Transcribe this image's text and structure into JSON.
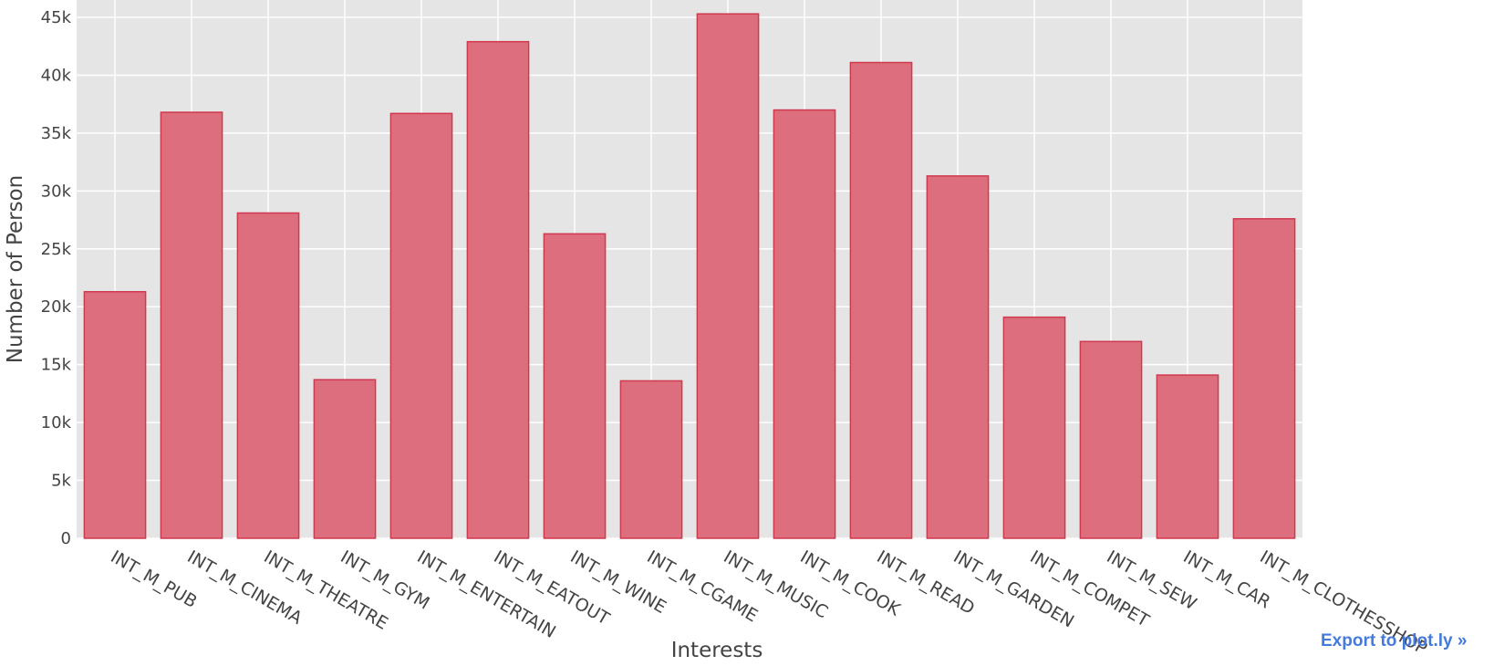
{
  "export_label": "Export to plot.ly »",
  "colors": {
    "bar_fill": "#dc6e7e",
    "bar_stroke": "#d0394e",
    "plot_bg": "#e5e5e5",
    "grid": "#ffffff"
  },
  "chart_data": {
    "type": "bar",
    "title": "",
    "xlabel": "Interests",
    "ylabel": "Number of Person",
    "ylim": [
      0,
      46500
    ],
    "grid": true,
    "yticks": [
      0,
      5000,
      10000,
      15000,
      20000,
      25000,
      30000,
      35000,
      40000,
      45000
    ],
    "ytick_labels": [
      "0",
      "5k",
      "10k",
      "15k",
      "20k",
      "25k",
      "30k",
      "35k",
      "40k",
      "45k"
    ],
    "categories": [
      "INT_M_PUB",
      "INT_M_CINEMA",
      "INT_M_THEATRE",
      "INT_M_GYM",
      "INT_M_ENTERTAIN",
      "INT_M_EATOUT",
      "INT_M_WINE",
      "INT_M_CGAME",
      "INT_M_MUSIC",
      "INT_M_COOK",
      "INT_M_READ",
      "INT_M_GARDEN",
      "INT_M_COMPET",
      "INT_M_SEW",
      "INT_M_CAR",
      "INT_M_CLOTHESSHOP"
    ],
    "values": [
      21300,
      36800,
      28100,
      13700,
      36700,
      42900,
      26300,
      13600,
      45300,
      37000,
      41100,
      31300,
      19100,
      17000,
      14100,
      27600
    ]
  }
}
